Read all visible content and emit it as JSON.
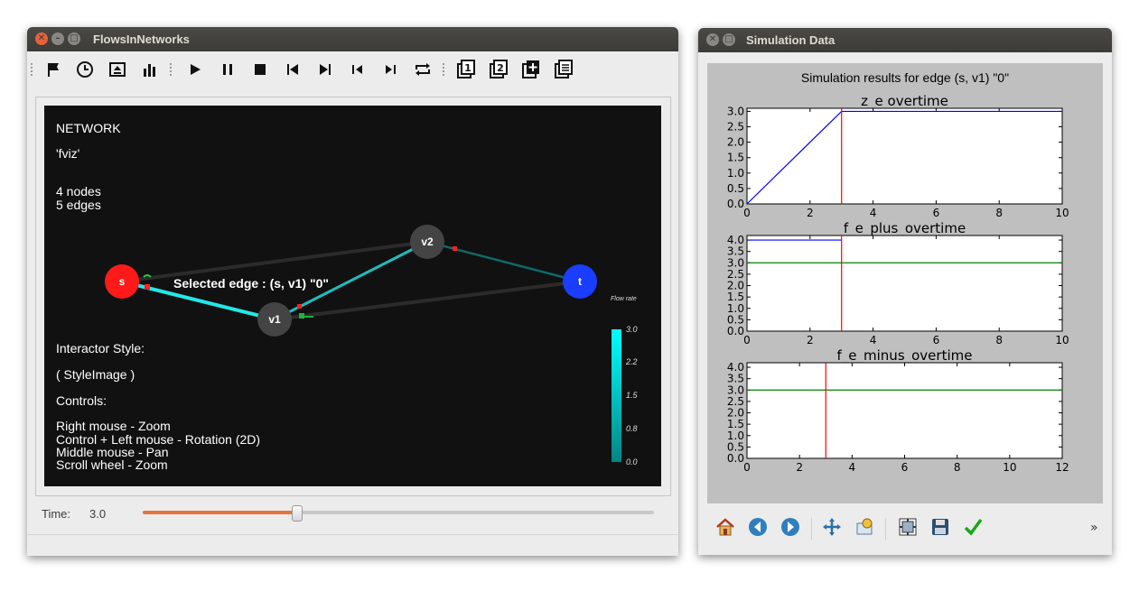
{
  "main_window": {
    "title": "FlowsInNetworks",
    "network": {
      "heading": "NETWORK",
      "name": "'fviz'",
      "nodes_count": "4 nodes",
      "edges_count": "5 edges",
      "selected_edge": "Selected edge : (s, v1) \"0\"",
      "nodes": {
        "s": "s",
        "v1": "v1",
        "v2": "v2",
        "t": "t"
      },
      "interactor_label": "Interactor Style:",
      "interactor_value": "( StyleImage )",
      "controls_label": "Controls:",
      "controls": [
        "Right mouse - Zoom",
        "Control + Left mouse - Rotation (2D)",
        "Middle mouse - Pan",
        "Scroll wheel - Zoom"
      ],
      "colorbar": {
        "title": "Flow rate",
        "ticks": [
          "3.0",
          "2.2",
          "1.5",
          "0.8",
          "0.0"
        ]
      }
    },
    "time_label": "Time:",
    "time_value": "3.0",
    "time_slider_fraction": 0.3
  },
  "sim_window": {
    "title": "Simulation Data",
    "suptitle": "Simulation results for edge (s, v1) \"0\"",
    "overflow_glyph": "»"
  },
  "colors": {
    "blue_line": "#0000ff",
    "red_line": "#ff0000",
    "green_line": "#008000",
    "edge_cyan": "#00e5e5",
    "node_s": "#ff1a1a",
    "node_t": "#1a3dff",
    "node_v": "#444444",
    "slider": "#e8733f"
  },
  "chart_data": [
    {
      "type": "line",
      "title": "z_e overtime",
      "xlim": [
        0,
        10
      ],
      "ylim": [
        0,
        3.1
      ],
      "xticks": [
        "0",
        "2",
        "4",
        "6",
        "8",
        "10"
      ],
      "yticks": [
        "0.0",
        "0.5",
        "1.0",
        "1.5",
        "2.0",
        "2.5",
        "3.0"
      ],
      "series": [
        {
          "color": "#0000ff",
          "points": [
            [
              0,
              0
            ],
            [
              3,
              3.0
            ],
            [
              10,
              3.0
            ]
          ]
        }
      ],
      "vlines": [
        {
          "x": 3,
          "color": "#ff0000"
        }
      ]
    },
    {
      "type": "line",
      "title": "f_e_plus_overtime",
      "xlim": [
        0,
        10
      ],
      "ylim": [
        0,
        4.2
      ],
      "xticks": [
        "0",
        "2",
        "4",
        "6",
        "8",
        "10"
      ],
      "yticks": [
        "0.0",
        "0.5",
        "1.0",
        "1.5",
        "2.0",
        "2.5",
        "3.0",
        "3.5",
        "4.0"
      ],
      "series": [
        {
          "color": "#0000ff",
          "points": [
            [
              0,
              4.0
            ],
            [
              3,
              4.0
            ]
          ]
        },
        {
          "color": "#008000",
          "points": [
            [
              0,
              3.0
            ],
            [
              10,
              3.0
            ]
          ]
        }
      ],
      "vlines": [
        {
          "x": 3,
          "color": "#ff0000"
        }
      ]
    },
    {
      "type": "line",
      "title": "f_e_minus_overtime",
      "xlim": [
        0,
        12
      ],
      "ylim": [
        0,
        4.2
      ],
      "xticks": [
        "0",
        "2",
        "4",
        "6",
        "8",
        "10",
        "12"
      ],
      "yticks": [
        "0.0",
        "0.5",
        "1.0",
        "1.5",
        "2.0",
        "2.5",
        "3.0",
        "3.5",
        "4.0"
      ],
      "series": [
        {
          "color": "#008000",
          "points": [
            [
              0,
              3.0
            ],
            [
              12,
              3.0
            ]
          ]
        }
      ],
      "vlines": [
        {
          "x": 3,
          "color": "#ff0000"
        }
      ]
    }
  ]
}
